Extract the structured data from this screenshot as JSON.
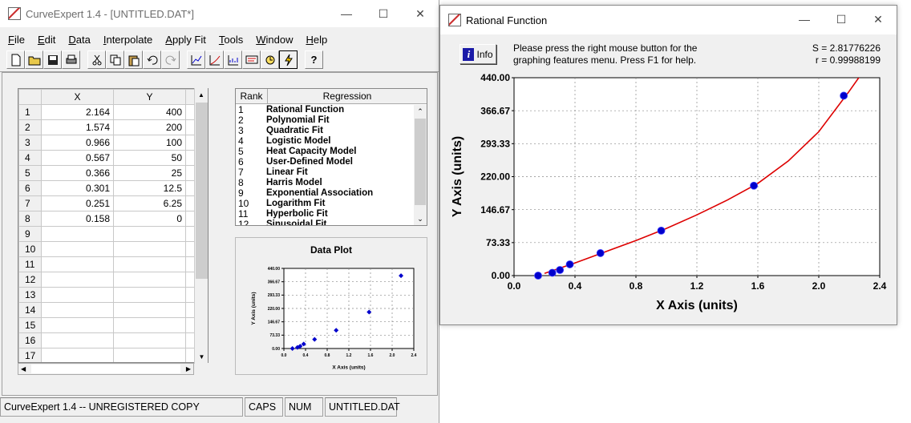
{
  "main_window": {
    "title": "CurveExpert 1.4 - [UNTITLED.DAT*]",
    "menu": [
      "File",
      "Edit",
      "Data",
      "Interpolate",
      "Apply Fit",
      "Tools",
      "Window",
      "Help"
    ],
    "toolbar_icons": [
      "new-file-icon",
      "open-folder-icon",
      "save-icon",
      "print-icon",
      "cut-icon",
      "copy-icon",
      "paste-icon",
      "undo-icon",
      "redo-icon",
      "plot-data-icon",
      "plot-fit-icon",
      "residual-icon",
      "info-card-icon",
      "calculator-icon",
      "curve-finder-icon",
      "help-icon"
    ],
    "spreadsheet": {
      "columns": [
        "X",
        "Y"
      ],
      "rows": [
        {
          "n": "1",
          "x": "2.164",
          "y": "400"
        },
        {
          "n": "2",
          "x": "1.574",
          "y": "200"
        },
        {
          "n": "3",
          "x": "0.966",
          "y": "100"
        },
        {
          "n": "4",
          "x": "0.567",
          "y": "50"
        },
        {
          "n": "5",
          "x": "0.366",
          "y": "25"
        },
        {
          "n": "6",
          "x": "0.301",
          "y": "12.5"
        },
        {
          "n": "7",
          "x": "0.251",
          "y": "6.25"
        },
        {
          "n": "8",
          "x": "0.158",
          "y": "0"
        },
        {
          "n": "9",
          "x": "",
          "y": ""
        },
        {
          "n": "10",
          "x": "",
          "y": ""
        },
        {
          "n": "11",
          "x": "",
          "y": ""
        },
        {
          "n": "12",
          "x": "",
          "y": ""
        },
        {
          "n": "13",
          "x": "",
          "y": ""
        },
        {
          "n": "14",
          "x": "",
          "y": ""
        },
        {
          "n": "15",
          "x": "",
          "y": ""
        },
        {
          "n": "16",
          "x": "",
          "y": ""
        },
        {
          "n": "17",
          "x": "",
          "y": ""
        }
      ]
    },
    "ranking": {
      "headers": [
        "Rank",
        "Regression"
      ],
      "items": [
        {
          "rank": "1",
          "name": "Rational Function"
        },
        {
          "rank": "2",
          "name": "Polynomial Fit"
        },
        {
          "rank": "3",
          "name": "Quadratic Fit"
        },
        {
          "rank": "4",
          "name": "Logistic Model"
        },
        {
          "rank": "5",
          "name": "Heat Capacity Model"
        },
        {
          "rank": "6",
          "name": "User-Defined Model"
        },
        {
          "rank": "7",
          "name": "Linear Fit"
        },
        {
          "rank": "8",
          "name": "Harris Model"
        },
        {
          "rank": "9",
          "name": "Exponential Association"
        },
        {
          "rank": "10",
          "name": "Logarithm Fit"
        },
        {
          "rank": "11",
          "name": "Hyperbolic Fit"
        },
        {
          "rank": "12",
          "name": "Sinusoidal Fit"
        }
      ]
    },
    "data_plot": {
      "title": "Data Plot",
      "xlabel": "X Axis (units)",
      "ylabel": "Y Axis (units)",
      "xticks": [
        "0.0",
        "0.4",
        "0.8",
        "1.2",
        "1.6",
        "2.0",
        "2.4"
      ],
      "yticks": [
        "0.00",
        "73.33",
        "146.67",
        "220.00",
        "293.33",
        "366.67",
        "440.00"
      ]
    },
    "status": {
      "message": "CurveExpert 1.4 -- UNREGISTERED COPY",
      "caps": "CAPS",
      "num": "NUM",
      "file": "UNTITLED.DAT"
    }
  },
  "rational_window": {
    "title": "Rational Function",
    "info_label": "Info",
    "help_line1": "Please press the right mouse button for the",
    "help_line2": "graphing features menu.  Press F1 for help.",
    "s_value": "S = 2.81776226",
    "r_value": "r = 0.99988199"
  },
  "colors": {
    "point": "#0000cc",
    "fit_curve": "#dd0000",
    "grid": "#888888"
  },
  "chart_data": [
    {
      "type": "scatter",
      "title": "Rational Function",
      "xlabel": "X Axis (units)",
      "ylabel": "Y Axis (units)",
      "xlim": [
        0.0,
        2.4
      ],
      "ylim": [
        0.0,
        440.0
      ],
      "xticks": [
        "0.0",
        "0.4",
        "0.8",
        "1.2",
        "1.6",
        "2.0",
        "2.4"
      ],
      "yticks": [
        "0.00",
        "73.33",
        "146.67",
        "220.00",
        "293.33",
        "366.67",
        "440.00"
      ],
      "grid": true,
      "points": {
        "x": [
          2.164,
          1.574,
          0.966,
          0.567,
          0.366,
          0.301,
          0.251,
          0.158
        ],
        "y": [
          400,
          200,
          100,
          50,
          25,
          12.5,
          6.25,
          0
        ]
      },
      "fit_curve": {
        "x": [
          0.2,
          0.4,
          0.6,
          0.8,
          1.0,
          1.2,
          1.4,
          1.6,
          1.8,
          2.0,
          2.2,
          2.3
        ],
        "y": [
          5,
          28,
          53,
          78,
          105,
          135,
          168,
          205,
          255,
          320,
          410,
          458
        ]
      }
    },
    {
      "type": "scatter",
      "title": "Data Plot",
      "xlabel": "X Axis (units)",
      "ylabel": "Y Axis (units)",
      "xlim": [
        0.0,
        2.4
      ],
      "ylim": [
        0.0,
        440.0
      ],
      "grid": true,
      "points": {
        "x": [
          2.164,
          1.574,
          0.966,
          0.567,
          0.366,
          0.301,
          0.251,
          0.158
        ],
        "y": [
          400,
          200,
          100,
          50,
          25,
          12.5,
          6.25,
          0
        ]
      }
    }
  ]
}
